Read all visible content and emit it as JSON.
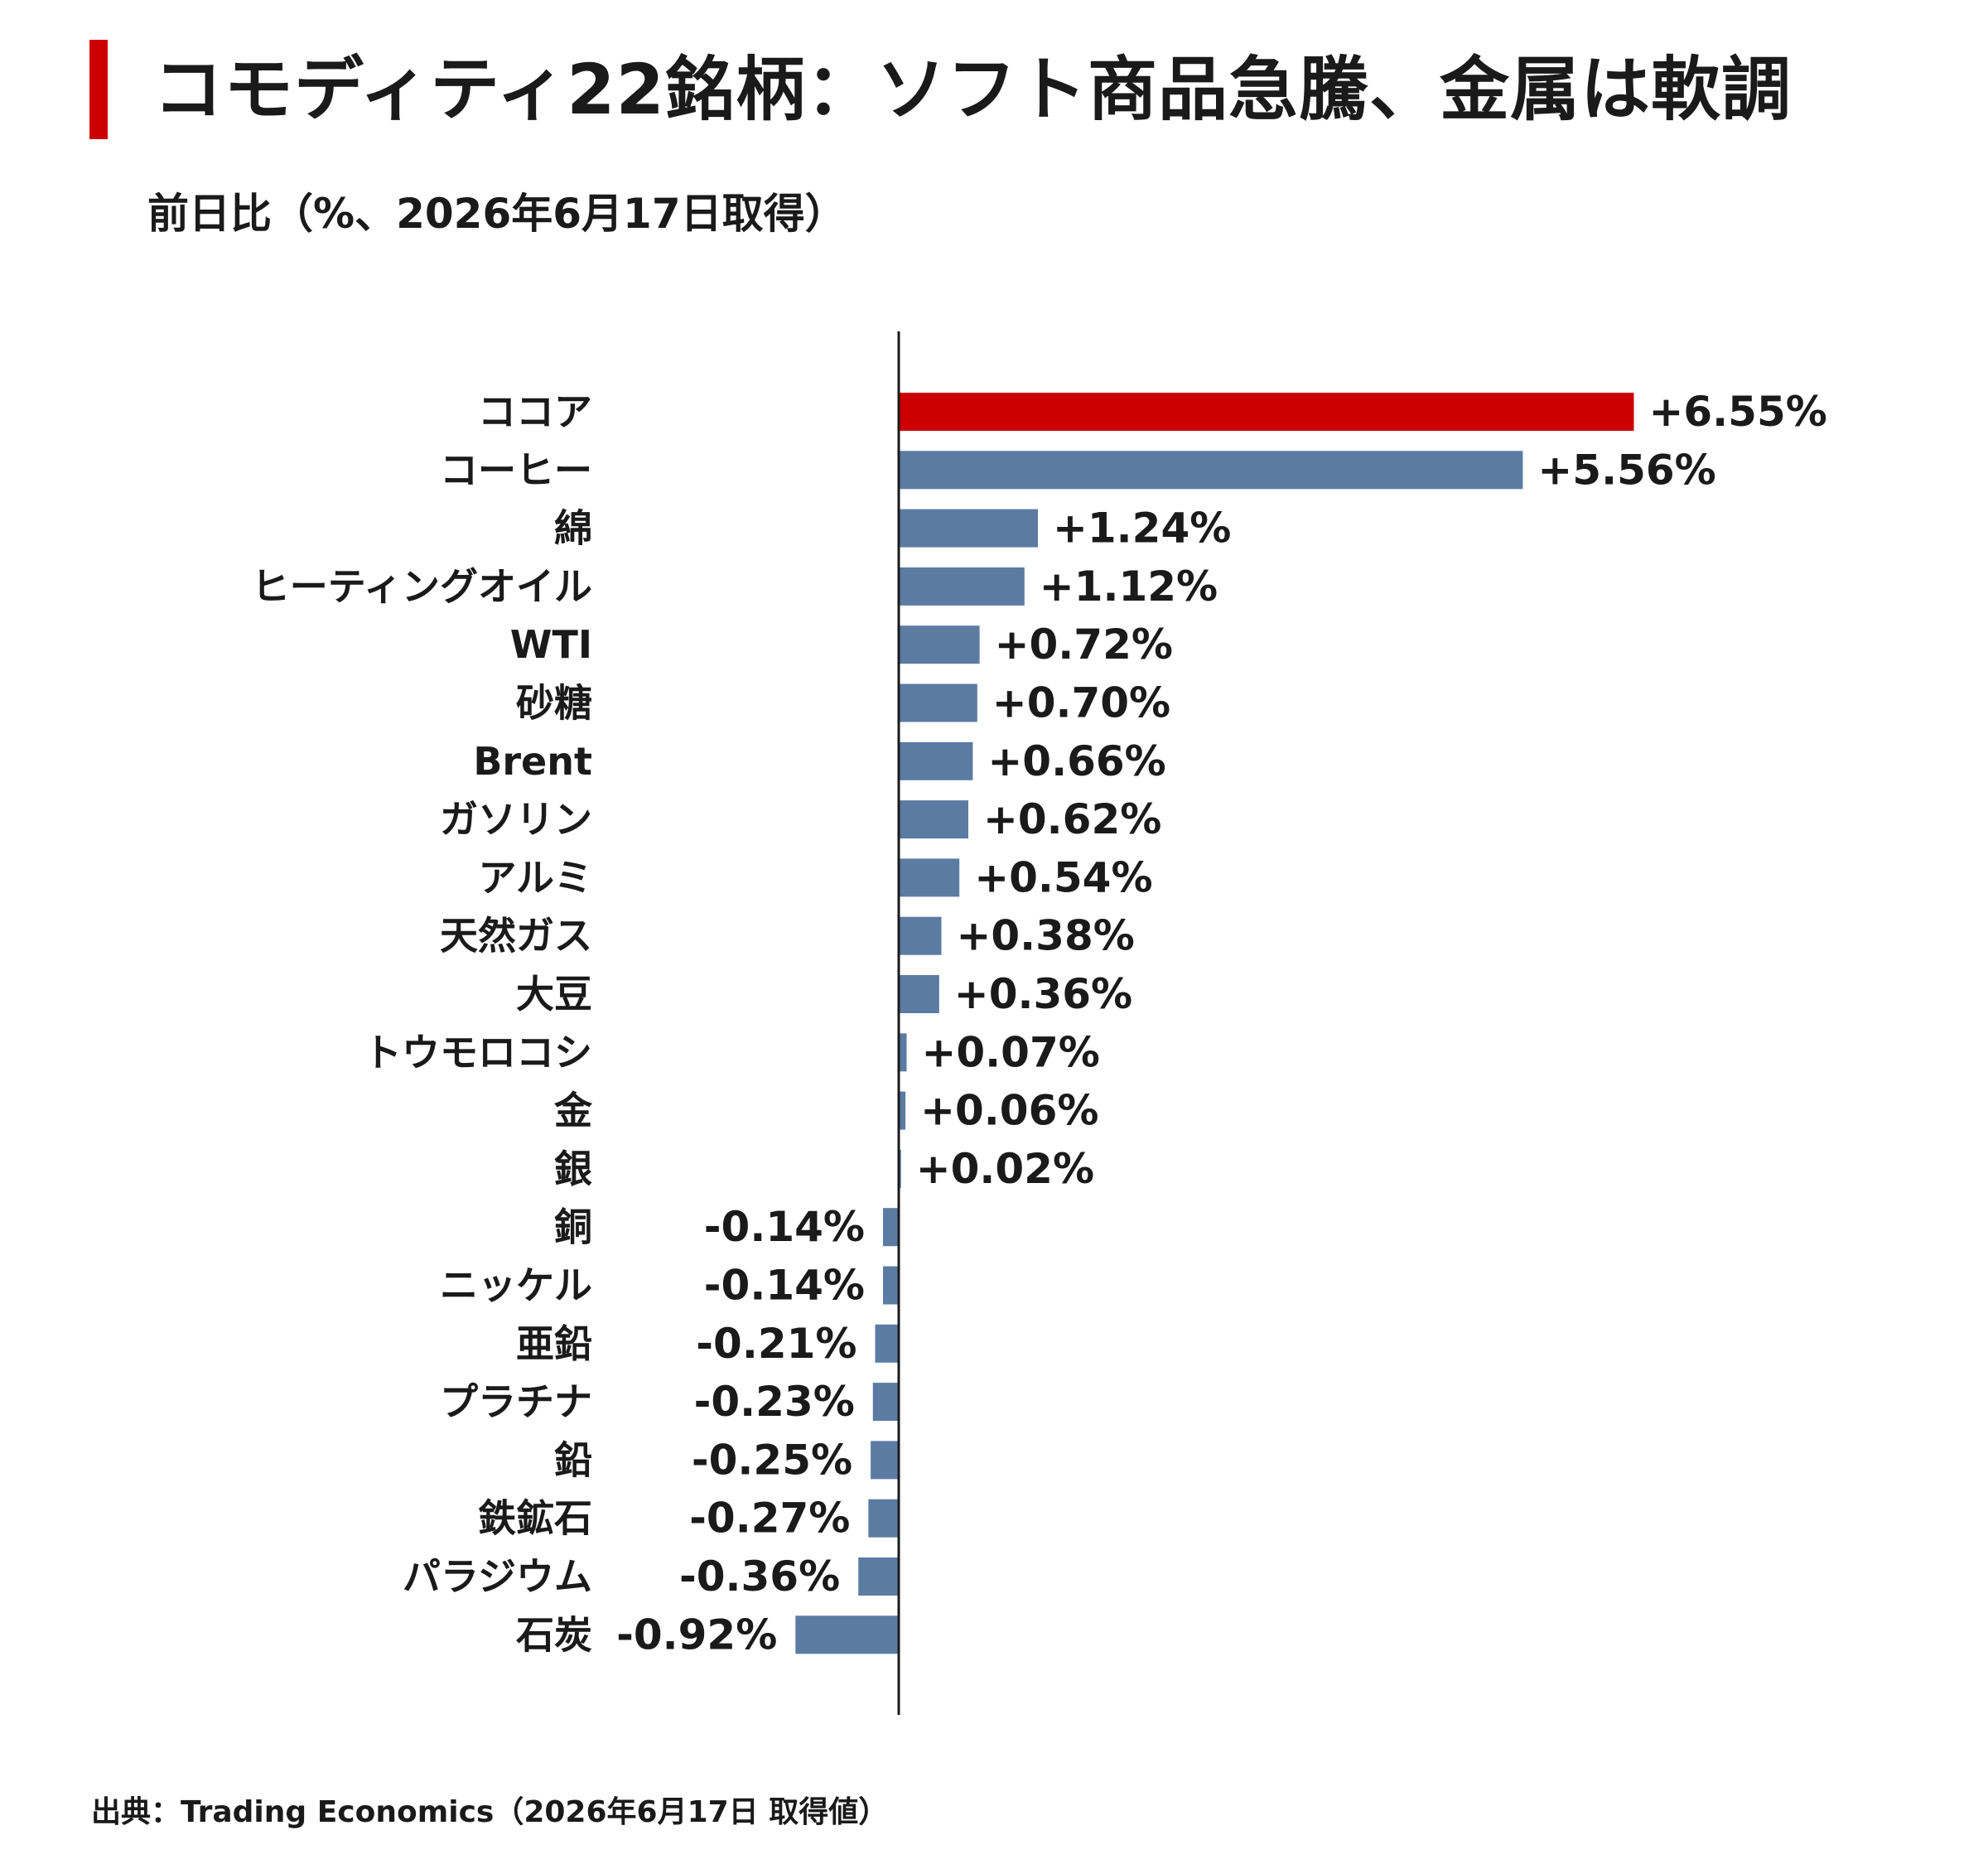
{
  "title": "コモディティ22銘柄：ソフト商品急騰、金属は軟調",
  "subtitle": "前日比（%、2026年6月17日取得）",
  "source": "出典：Trading Economics（2026年6月17日 取得値）",
  "colors": {
    "highlight": "#cc0000",
    "bar": "#5b7ba3",
    "axis": "#1a1a1a",
    "text": "#1a1a1a"
  },
  "chart_data": {
    "type": "bar",
    "orientation": "horizontal",
    "categories": [
      "ココア",
      "コーヒー",
      "綿",
      "ヒーティングオイル",
      "WTI",
      "砂糖",
      "Brent",
      "ガソリン",
      "アルミ",
      "天然ガス",
      "大豆",
      "トウモロコシ",
      "金",
      "銀",
      "銅",
      "ニッケル",
      "亜鉛",
      "プラチナ",
      "鉛",
      "鉄鉱石",
      "パラジウム",
      "石炭"
    ],
    "values": [
      6.55,
      5.56,
      1.24,
      1.12,
      0.72,
      0.7,
      0.66,
      0.62,
      0.54,
      0.38,
      0.36,
      0.07,
      0.06,
      0.02,
      -0.14,
      -0.14,
      -0.21,
      -0.23,
      -0.25,
      -0.27,
      -0.36,
      -0.92
    ],
    "labels": [
      "+6.55%",
      "+5.56%",
      "+1.24%",
      "+1.12%",
      "+0.72%",
      "+0.70%",
      "+0.66%",
      "+0.62%",
      "+0.54%",
      "+0.38%",
      "+0.36%",
      "+0.07%",
      "+0.06%",
      "+0.02%",
      "-0.14%",
      "-0.14%",
      "-0.21%",
      "-0.23%",
      "-0.25%",
      "-0.27%",
      "-0.36%",
      "-0.92%"
    ],
    "highlight": [
      "ココア"
    ],
    "xlim": [
      -0.92,
      6.55
    ],
    "grid": false,
    "legend": "none"
  }
}
